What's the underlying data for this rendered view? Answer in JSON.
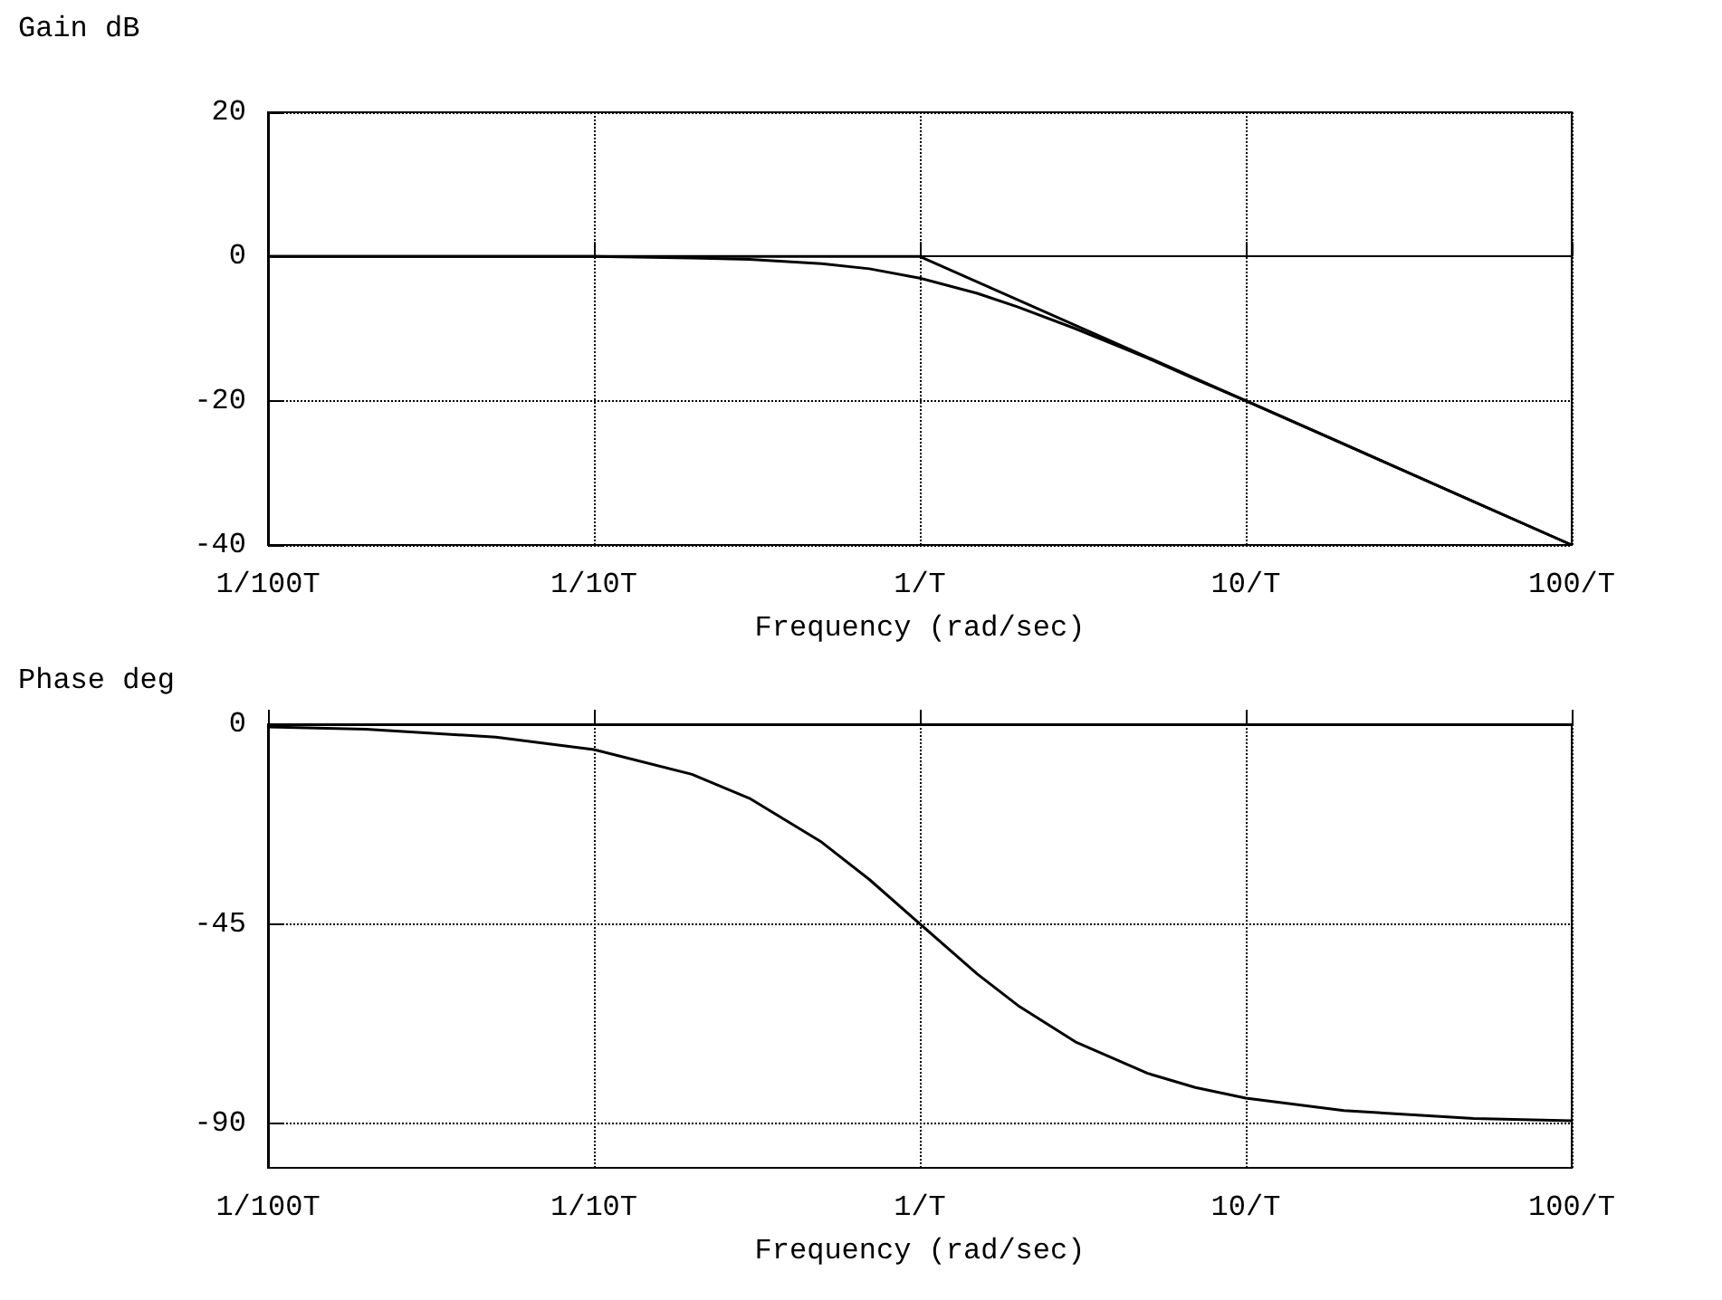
{
  "chart_data": [
    {
      "type": "line",
      "ylabel": "Gain dB",
      "xlabel": "Frequency (rad/sec)",
      "log": "x",
      "grid": true,
      "marker": "none",
      "xlim": [
        0.01,
        100
      ],
      "xticks": [
        {
          "value": 0.01,
          "label": "1/100T"
        },
        {
          "value": 0.1,
          "label": "1/10T"
        },
        {
          "value": 1,
          "label": "1/T"
        },
        {
          "value": 10,
          "label": "10/T"
        },
        {
          "value": 100,
          "label": "100/T"
        }
      ],
      "ylim": [
        -40,
        20
      ],
      "yticks": [
        -40,
        -20,
        0,
        20
      ],
      "series": [
        {
          "color": "#000000",
          "x": [
            0.01,
            0.02,
            0.05,
            0.1,
            0.2,
            0.3,
            0.5,
            0.7,
            1,
            1.5,
            2,
            3,
            5,
            7,
            10,
            20,
            50,
            100
          ],
          "values": [
            0,
            0,
            0,
            0,
            -0.2,
            -0.4,
            -1,
            -1.7,
            -3,
            -5.1,
            -7,
            -10,
            -14.1,
            -17,
            -20,
            -26,
            -34,
            -40
          ]
        },
        {
          "color": "#000000",
          "x": [
            0.01,
            1,
            100
          ],
          "values": [
            0,
            0,
            -40
          ]
        }
      ]
    },
    {
      "type": "line",
      "ylabel": "Phase deg",
      "xlabel": "Frequency (rad/sec)",
      "log": "x",
      "grid": true,
      "marker": "none",
      "xlim": [
        0.01,
        100
      ],
      "xticks": [
        {
          "value": 0.01,
          "label": "1/100T"
        },
        {
          "value": 0.1,
          "label": "1/10T"
        },
        {
          "value": 1,
          "label": "1/T"
        },
        {
          "value": 10,
          "label": "10/T"
        },
        {
          "value": 100,
          "label": "100/T"
        }
      ],
      "ylim": [
        -100,
        0
      ],
      "yticks": [
        -90,
        -45,
        0
      ],
      "series": [
        {
          "color": "#000000",
          "x": [
            0.01,
            0.02,
            0.05,
            0.1,
            0.2,
            0.3,
            0.5,
            0.7,
            1,
            1.5,
            2,
            3,
            5,
            7,
            10,
            20,
            50,
            100
          ],
          "values": [
            -0.6,
            -1.1,
            -2.9,
            -5.7,
            -11.3,
            -16.7,
            -26.6,
            -35,
            -45,
            -56.3,
            -63.4,
            -71.6,
            -78.7,
            -81.9,
            -84.3,
            -87.1,
            -88.9,
            -89.4
          ]
        }
      ]
    }
  ]
}
